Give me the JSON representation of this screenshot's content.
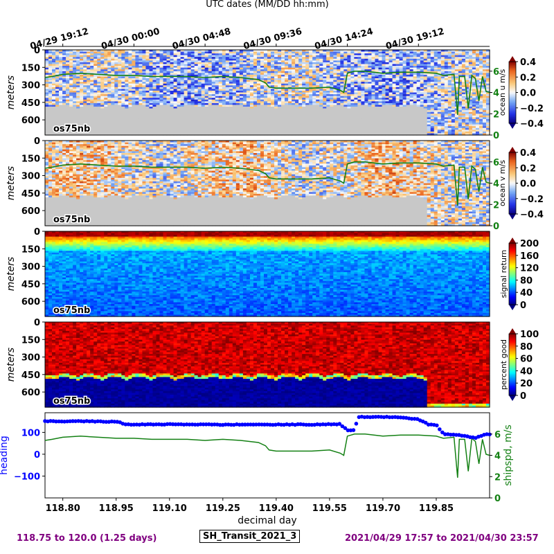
{
  "chart_data": {
    "type": "heatmap",
    "title": "UTC dates (MM/DD hh:mm)",
    "top_ticks": [
      "04/29 19:12",
      "04/30 00:00",
      "04/30 04:48",
      "04/30 09:36",
      "04/30 14:24",
      "04/30 19:12"
    ],
    "top_tick_days": [
      118.8,
      119.0,
      119.2,
      119.4,
      119.6,
      119.8
    ],
    "xlabel": "decimal day",
    "xlim": [
      118.75,
      120.0
    ],
    "x_ticks": [
      "118.80",
      "118.95",
      "119.10",
      "119.25",
      "119.40",
      "119.55",
      "119.70",
      "119.85"
    ],
    "x_tick_values": [
      118.8,
      118.95,
      119.1,
      119.25,
      119.4,
      119.55,
      119.7,
      119.85
    ],
    "depth_label": "meters",
    "depth_ticks": [
      "0",
      "150",
      "300",
      "450",
      "600"
    ],
    "depth_tick_values": [
      0,
      150,
      300,
      450,
      600
    ],
    "depth_range": [
      0,
      730
    ],
    "instrument": "os75nb",
    "panels": [
      {
        "quantity": "ocean u",
        "colorbar_label": "ocean u m/s",
        "colormap": "bwr",
        "clim": [
          -0.4,
          0.4
        ],
        "colorbar_ticks": [
          "0.4",
          "0.2",
          "0.0",
          "−0.2",
          "−0.4"
        ],
        "right_axis_ticks": [
          "6",
          "4",
          "2",
          "0"
        ],
        "right_axis_range": [
          0,
          8
        ]
      },
      {
        "quantity": "ocean v",
        "colorbar_label": "ocean v m/s",
        "colormap": "bwr",
        "clim": [
          -0.4,
          0.4
        ],
        "colorbar_ticks": [
          "0.4",
          "0.2",
          "0.0",
          "−0.2",
          "−0.4"
        ],
        "right_axis_ticks": [
          "6",
          "4",
          "2",
          "0"
        ],
        "right_axis_range": [
          0,
          8
        ]
      },
      {
        "quantity": "signal return",
        "colorbar_label": "signal return",
        "colormap": "jet",
        "clim": [
          0,
          200
        ],
        "colorbar_ticks": [
          "200",
          "160",
          "120",
          "80",
          "40",
          "0"
        ]
      },
      {
        "quantity": "percent good",
        "colorbar_label": "percent good",
        "colormap": "jet",
        "clim": [
          0,
          100
        ],
        "colorbar_ticks": [
          "100",
          "80",
          "60",
          "40",
          "20",
          "0"
        ]
      }
    ],
    "bottom_panel": {
      "left_label": "heading",
      "left_ticks": [
        "100",
        "0",
        "−100"
      ],
      "left_tick_values": [
        100,
        0,
        -100
      ],
      "left_range": [
        -200,
        190
      ],
      "right_label": "shipspd, m/s",
      "right_ticks": [
        "6",
        "4",
        "2",
        "0"
      ],
      "right_tick_values": [
        6,
        4,
        2,
        0
      ],
      "right_range": [
        0,
        8
      ],
      "heading_series": {
        "x": [
          118.75,
          118.8,
          118.83,
          118.9,
          118.96,
          118.97,
          119.0,
          119.05,
          119.1,
          119.2,
          119.25,
          119.3,
          119.4,
          119.5,
          119.58,
          119.6,
          119.62,
          119.63,
          119.7,
          119.75,
          119.8,
          119.83,
          119.85,
          119.87,
          119.9,
          119.93,
          119.96,
          119.99
        ],
        "y": [
          152,
          150,
          152,
          150,
          148,
          137,
          136,
          137,
          137,
          136,
          135,
          136,
          136,
          136,
          138,
          110,
          110,
          171,
          171,
          168,
          160,
          135,
          135,
          93,
          90,
          83,
          75,
          92
        ]
      },
      "ship_speed_series": {
        "x": [
          118.75,
          118.77,
          118.8,
          118.85,
          118.9,
          118.95,
          119.0,
          119.05,
          119.1,
          119.15,
          119.2,
          119.25,
          119.3,
          119.35,
          119.37,
          119.38,
          119.4,
          119.45,
          119.5,
          119.55,
          119.58,
          119.59,
          119.6,
          119.62,
          119.65,
          119.7,
          119.75,
          119.8,
          119.85,
          119.87,
          119.9,
          119.91,
          119.915,
          119.93,
          119.94,
          119.95,
          119.96,
          119.97,
          119.98,
          119.99,
          120.0
        ],
        "y": [
          5.4,
          5.5,
          5.7,
          5.8,
          5.7,
          5.6,
          5.6,
          5.5,
          5.5,
          5.5,
          5.4,
          5.5,
          5.4,
          5.2,
          4.9,
          4.5,
          4.4,
          4.4,
          4.4,
          4.5,
          4.2,
          4.0,
          5.8,
          6.0,
          6.0,
          5.8,
          5.9,
          5.9,
          5.8,
          5.6,
          5.7,
          1.9,
          5.5,
          5.5,
          2.5,
          5.6,
          5.3,
          3.2,
          5.5,
          4.1,
          4.0
        ]
      }
    }
  },
  "footer": {
    "left": "118.75 to 120.0 (1.25 days)",
    "center": "SH_Transit_2021_3",
    "right": "2021/04/29 17:57 to 2021/04/30 23:57"
  },
  "colors": {
    "footer_text": "#800080",
    "heading": "#0000ff",
    "ship_speed": "#138013",
    "no_data": "#c8c8c8"
  }
}
